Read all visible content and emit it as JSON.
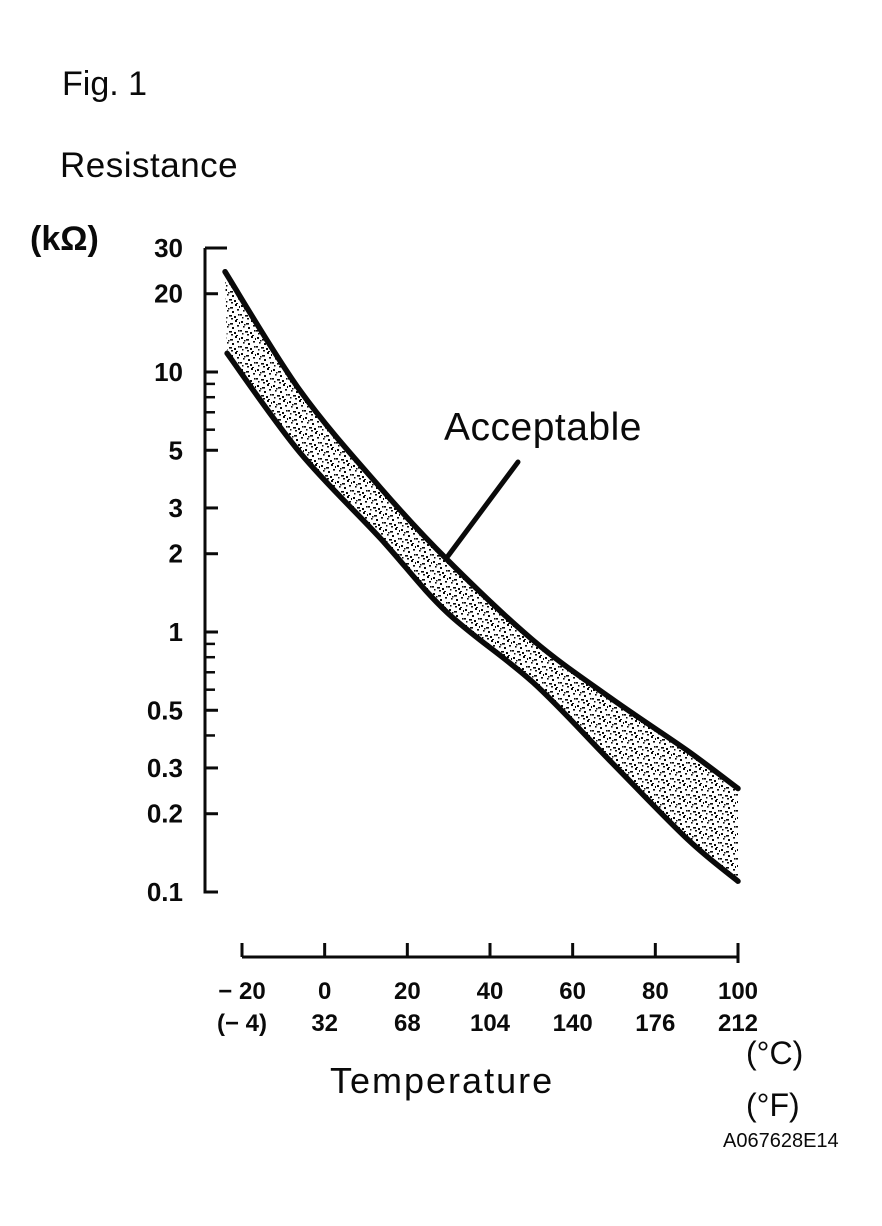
{
  "page": {
    "background": "#ffffff",
    "ink": "#0a0a0a"
  },
  "figure": {
    "label": "Fig. 1",
    "code": "A067628E14"
  },
  "chart_data": {
    "type": "area",
    "description": "Thermistor resistance vs temperature with shaded acceptable band between upper and lower limit curves",
    "y_axis": {
      "title": "Resistance",
      "unit": "(kΩ)",
      "scale": "log",
      "min": 0.1,
      "max": 30,
      "major_ticks": [
        30,
        20,
        10,
        5,
        3,
        2,
        1,
        0.5,
        0.3,
        0.2,
        0.1
      ],
      "major_tick_labels": [
        "30",
        "20",
        "10",
        "5",
        "3",
        "2",
        "1",
        "0.5",
        "0.3",
        "0.2",
        "0.1"
      ],
      "minor_ticks": [
        9,
        8,
        7,
        6,
        0.9,
        0.8,
        0.7,
        0.6,
        0.4
      ]
    },
    "x_axis": {
      "title": "Temperature",
      "unit_row1": "(°C)",
      "unit_row2": "(°F)",
      "min": -20,
      "max": 100,
      "ticks_c": [
        -20,
        0,
        20,
        40,
        60,
        80,
        100
      ],
      "labels_c": [
        "− 20",
        "0",
        "20",
        "40",
        "60",
        "80",
        "100"
      ],
      "labels_f": [
        "(− 4)",
        "32",
        "68",
        "104",
        "140",
        "176",
        "212"
      ]
    },
    "band_label": "Acceptable",
    "series": [
      {
        "name": "upper_limit",
        "unit": "kΩ",
        "points_t_c_r_kohm": [
          [
            -24.1,
            24.3
          ],
          [
            -6.0,
            8.5
          ],
          [
            13.4,
            3.6
          ],
          [
            29.6,
            1.9
          ],
          [
            50.4,
            0.93
          ],
          [
            69.0,
            0.56
          ],
          [
            87.7,
            0.35
          ],
          [
            100,
            0.25
          ]
        ]
      },
      {
        "name": "lower_limit",
        "unit": "kΩ",
        "points_t_c_r_kohm": [
          [
            -23.6,
            11.8
          ],
          [
            -6.0,
            4.9
          ],
          [
            13.4,
            2.3
          ],
          [
            29.6,
            1.19
          ],
          [
            50.4,
            0.64
          ],
          [
            69.0,
            0.32
          ],
          [
            87.7,
            0.16
          ],
          [
            100,
            0.11
          ]
        ]
      }
    ],
    "legend": "none",
    "grid": "off"
  }
}
